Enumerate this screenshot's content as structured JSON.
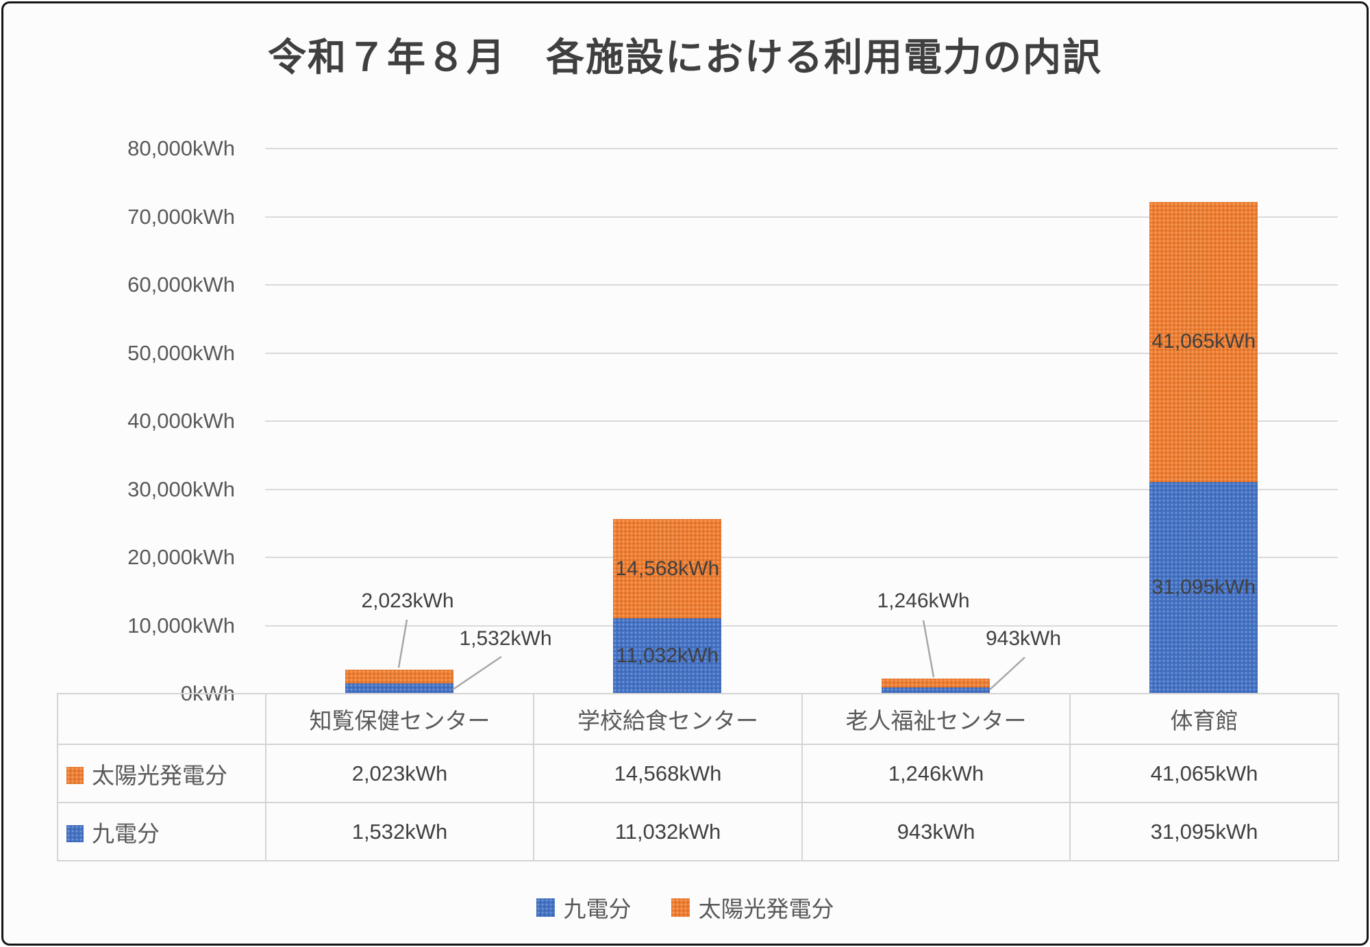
{
  "title": "令和７年８月　各施設における利用電力の内訳",
  "colors": {
    "kyuden_blue": "#4472C4",
    "solar_orange": "#ED7D31",
    "grid_line": "#DBD9D9",
    "axis_text": "#595959",
    "value_text": "#404040"
  },
  "chart_data": {
    "type": "bar",
    "stacked": true,
    "title": "令和７年８月　各施設における利用電力の内訳",
    "categories": [
      "知覧保健センター",
      "学校給食センター",
      "老人福祉センター",
      "体育館"
    ],
    "series": [
      {
        "name": "九電分",
        "color": "#4472C4",
        "values": [
          1532,
          11032,
          943,
          31095
        ],
        "value_labels": [
          "1,532kWh",
          "11,032kWh",
          "943kWh",
          "31,095kWh"
        ]
      },
      {
        "name": "太陽光発電分",
        "color": "#ED7D31",
        "values": [
          2023,
          14568,
          1246,
          41065
        ],
        "value_labels": [
          "2,023kWh",
          "14,568kWh",
          "1,246kWh",
          "41,065kWh"
        ]
      }
    ],
    "xlabel": "",
    "ylabel": "",
    "ylim": [
      0,
      80000
    ],
    "ytick_interval": 10000,
    "ytick_labels": [
      "0kWh",
      "10,000kWh",
      "20,000kWh",
      "30,000kWh",
      "40,000kWh",
      "50,000kWh",
      "60,000kWh",
      "70,000kWh",
      "80,000kWh"
    ],
    "grid": true,
    "legend_position": "bottom"
  },
  "data_table": {
    "column_headers": [
      "知覧保健センター",
      "学校給食センター",
      "老人福祉センター",
      "体育館"
    ],
    "rows": [
      {
        "label": "太陽光発電分",
        "key_color": "#ED7D31",
        "cells": [
          "2,023kWh",
          "14,568kWh",
          "1,246kWh",
          "41,065kWh"
        ]
      },
      {
        "label": "九電分",
        "key_color": "#4472C4",
        "cells": [
          "1,532kWh",
          "11,032kWh",
          "943kWh",
          "31,095kWh"
        ]
      }
    ]
  },
  "legend": {
    "items": [
      {
        "label": "九電分",
        "color": "#4472C4"
      },
      {
        "label": "太陽光発電分",
        "color": "#ED7D31"
      }
    ]
  }
}
